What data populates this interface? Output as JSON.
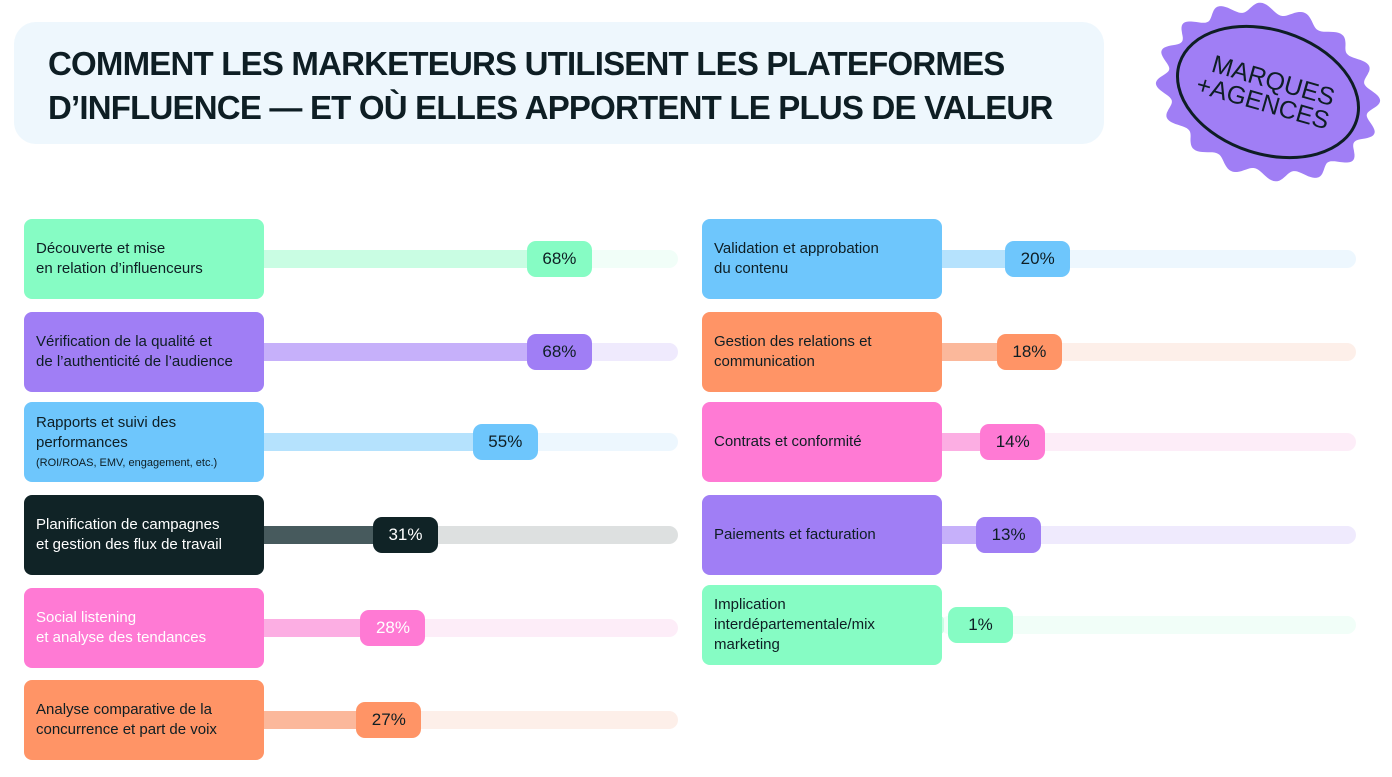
{
  "title": {
    "line1": "COMMENT LES MARKETEURS UTILISENT LES PLATEFORMES",
    "line2": "D’INFLUENCE — ET OÙ ELLES APPORTENT LE PLUS DE VALEUR"
  },
  "badge": {
    "line1": "MARQUES",
    "line2": "+AGENCES",
    "color": "#a07ef5"
  },
  "chart_data": {
    "type": "bar",
    "title": "COMMENT LES MARKETEURS UTILISENT LES PLATEFORMES D’INFLUENCE — ET OÙ ELLES APPORTENT LE PLUS DE VALEUR",
    "ylim": [
      0,
      100
    ],
    "items": [
      {
        "label": "Découverte et mise\nen relation d’influenceurs",
        "value": 68,
        "display": "68%",
        "color": "#86fcc4",
        "fill": "#c9fde3",
        "track": "#f1fef8",
        "text": "#0e1e24"
      },
      {
        "label": "Vérification de la qualité et\nde l’authenticité de l’audience",
        "value": 68,
        "display": "68%",
        "color": "#a07ef5",
        "fill": "#c6b0fa",
        "track": "#efeafd",
        "text": "#0e1e24"
      },
      {
        "label": "Rapports et suivi des\nperformances",
        "note": "(ROI/ROAS, EMV, engagement, etc.)",
        "value": 55,
        "display": "55%",
        "color": "#6ec6fc",
        "fill": "#b5e2fd",
        "track": "#edf7fe",
        "text": "#0e1e24"
      },
      {
        "label": "Planification de campagnes\net gestion des flux de travail",
        "value": 31,
        "display": "31%",
        "color": "#102326",
        "fill": "#475a5d",
        "track": "#dde0e0",
        "text": "#ffffff"
      },
      {
        "label": "Social listening\net analyse des tendances",
        "value": 28,
        "display": "28%",
        "color": "#ff7ad4",
        "fill": "#fcaee3",
        "track": "#fdedf8",
        "text": "#ffffff"
      },
      {
        "label": "Analyse comparative de la\nconcurrence et part de voix",
        "value": 27,
        "display": "27%",
        "color": "#ff9466",
        "fill": "#fbb89b",
        "track": "#fdefe9",
        "text": "#0e1e24"
      },
      {
        "label": "Validation et approbation\ndu contenu",
        "value": 20,
        "display": "20%",
        "color": "#6ec6fc",
        "fill": "#b5e2fd",
        "track": "#edf7fe",
        "text": "#0e1e24"
      },
      {
        "label": "Gestion des relations et\ncommunication",
        "value": 18,
        "display": "18%",
        "color": "#ff9466",
        "fill": "#fbb89b",
        "track": "#fdefe9",
        "text": "#0e1e24"
      },
      {
        "label": "Contrats et conformité",
        "value": 14,
        "display": "14%",
        "color": "#ff7ad4",
        "fill": "#fcaee3",
        "track": "#fdedf8",
        "text": "#0e1e24"
      },
      {
        "label": "Paiements et facturation",
        "value": 13,
        "display": "13%",
        "color": "#a07ef5",
        "fill": "#c6b0fa",
        "track": "#efeafd",
        "text": "#0e1e24"
      },
      {
        "label": "Implication\ninterdépartementale/mix\nmarketing",
        "value": 1,
        "display": "1%",
        "color": "#86fcc4",
        "fill": "#c9fde3",
        "track": "#f1fef8",
        "text": "#0e1e24"
      }
    ]
  }
}
